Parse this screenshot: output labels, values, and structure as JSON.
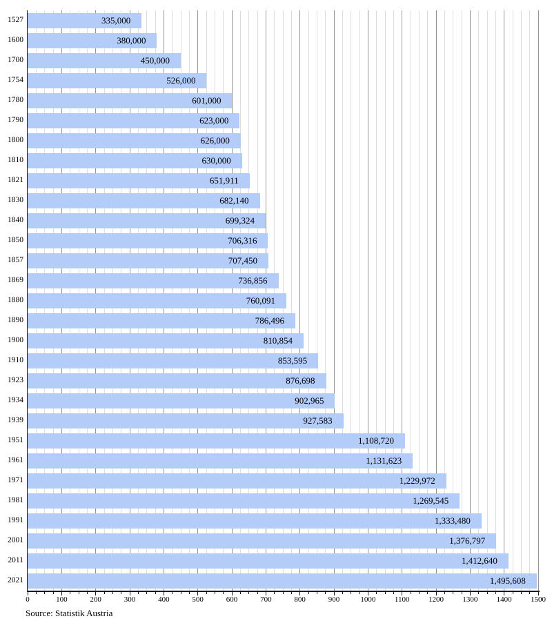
{
  "chart_data": {
    "type": "bar",
    "orientation": "horizontal",
    "title": "",
    "xlabel": "",
    "ylabel": "",
    "categories": [
      "1527",
      "1600",
      "1700",
      "1754",
      "1780",
      "1790",
      "1800",
      "1810",
      "1821",
      "1830",
      "1840",
      "1850",
      "1857",
      "1869",
      "1880",
      "1890",
      "1900",
      "1910",
      "1923",
      "1934",
      "1939",
      "1951",
      "1961",
      "1971",
      "1981",
      "1991",
      "2001",
      "2011",
      "2021"
    ],
    "values": [
      335000,
      380000,
      450000,
      526000,
      601000,
      623000,
      626000,
      630000,
      651911,
      682140,
      699324,
      706316,
      707450,
      736856,
      760091,
      786496,
      810854,
      853595,
      876698,
      902965,
      927583,
      1108720,
      1131623,
      1229972,
      1269545,
      1333480,
      1376797,
      1412640,
      1495608
    ],
    "value_labels": [
      "335,000",
      "380,000",
      "450,000",
      "526,000",
      "601,000",
      "623,000",
      "626,000",
      "630,000",
      "651,911",
      "682,140",
      "699,324",
      "706,316",
      "707,450",
      "736,856",
      "760,091",
      "786,496",
      "810,854",
      "853,595",
      "876,698",
      "902,965",
      "927,583",
      "1,108,720",
      "1,131,623",
      "1,229,972",
      "1,269,545",
      "1,333,480",
      "1,376,797",
      "1,412,640",
      "1,495,608"
    ],
    "x_axis": {
      "min": 0,
      "max": 1500,
      "major_tick_step": 100,
      "minor_tick_step": 25,
      "tick_labels": [
        "0",
        "100",
        "200",
        "300",
        "400",
        "500",
        "600",
        "700",
        "800",
        "900",
        "1000",
        "1100",
        "1200",
        "1300",
        "1400",
        "1500"
      ],
      "unit": "thousands"
    },
    "grid": true,
    "legend_position": "none",
    "source_note": "Source: Statistik Austria",
    "colors": {
      "bar": "#b3ccf8",
      "grid_major": "#949494",
      "grid_minor": "#dedede",
      "axis": "#1a1a1a",
      "text": "#000000",
      "background": "#ffffff"
    }
  }
}
